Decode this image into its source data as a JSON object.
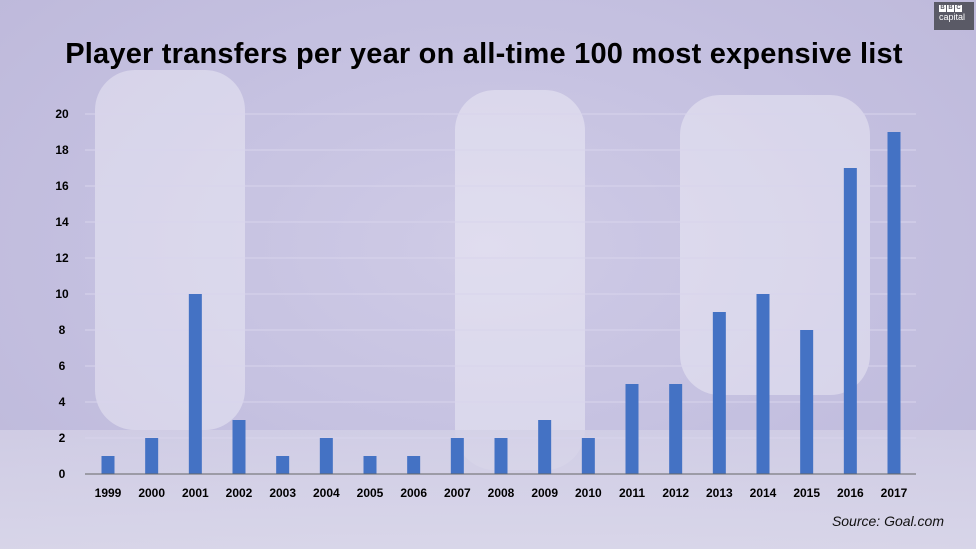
{
  "title": "Player transfers per year on all-time 100 most expensive list",
  "source": "Source: Goal.com",
  "logo": {
    "letters": [
      "B",
      "B",
      "C"
    ],
    "word": "capital"
  },
  "colors": {
    "bar": "#4472c4",
    "gridline": "#d8d4ec",
    "axis": "#666666"
  },
  "chart_data": {
    "type": "bar",
    "title": "Player transfers per year on all-time 100 most expensive list",
    "xlabel": "",
    "ylabel": "",
    "categories": [
      "1999",
      "2000",
      "2001",
      "2002",
      "2003",
      "2004",
      "2005",
      "2006",
      "2007",
      "2008",
      "2009",
      "2010",
      "2011",
      "2012",
      "2013",
      "2014",
      "2015",
      "2016",
      "2017"
    ],
    "values": [
      1,
      2,
      10,
      3,
      1,
      2,
      1,
      1,
      2,
      2,
      3,
      2,
      5,
      5,
      9,
      10,
      8,
      17,
      19
    ],
    "ylim": [
      0,
      20
    ],
    "yticks": [
      0,
      2,
      4,
      6,
      8,
      10,
      12,
      14,
      16,
      18,
      20
    ],
    "grid": true,
    "legend": "none"
  }
}
